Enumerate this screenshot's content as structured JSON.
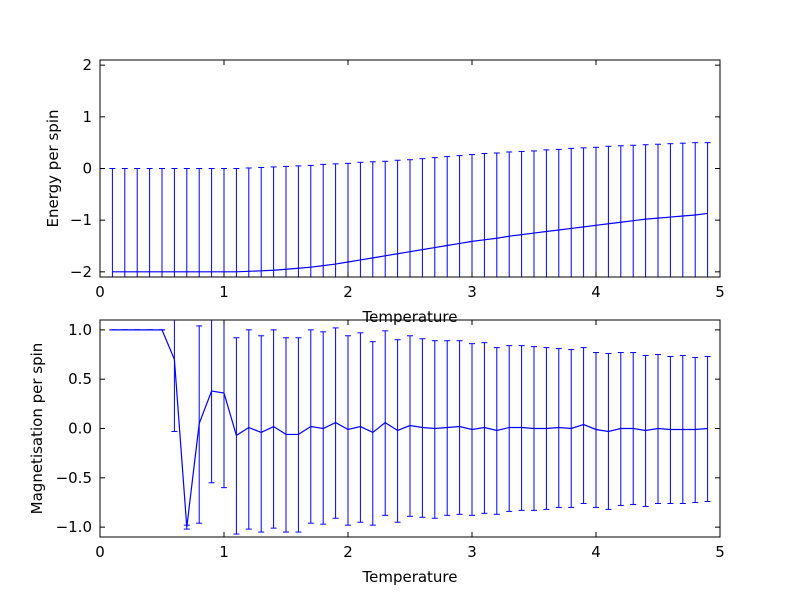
{
  "chart_data": [
    {
      "type": "line",
      "xlabel": "Temperature",
      "ylabel": "Energy per spin",
      "xlim": [
        0,
        5
      ],
      "ylim": [
        -2.1,
        2.1
      ],
      "xticks": [
        0,
        1,
        2,
        3,
        4,
        5
      ],
      "xtick_labels": [
        "0",
        "1",
        "2",
        "3",
        "4",
        "5"
      ],
      "yticks": [
        -2,
        -1,
        0,
        1,
        2
      ],
      "ytick_labels": [
        "−2",
        "−1",
        "0",
        "1",
        "2"
      ],
      "color": "#0000ff",
      "grid": false,
      "x": [
        0.1,
        0.2,
        0.3,
        0.4,
        0.5,
        0.6,
        0.7,
        0.8,
        0.9,
        1.0,
        1.1,
        1.2,
        1.3,
        1.4,
        1.5,
        1.6,
        1.7,
        1.8,
        1.9,
        2.0,
        2.1,
        2.2,
        2.3,
        2.4,
        2.5,
        2.6,
        2.7,
        2.8,
        2.9,
        3.0,
        3.1,
        3.2,
        3.3,
        3.4,
        3.5,
        3.6,
        3.7,
        3.8,
        3.9,
        4.0,
        4.1,
        4.2,
        4.3,
        4.4,
        4.5,
        4.6,
        4.7,
        4.8,
        4.9
      ],
      "y": [
        -2.0,
        -2.0,
        -2.0,
        -2.0,
        -2.0,
        -2.0,
        -2.0,
        -2.0,
        -2.0,
        -2.0,
        -2.0,
        -1.99,
        -1.98,
        -1.97,
        -1.95,
        -1.93,
        -1.91,
        -1.88,
        -1.85,
        -1.81,
        -1.77,
        -1.73,
        -1.69,
        -1.65,
        -1.61,
        -1.57,
        -1.53,
        -1.49,
        -1.45,
        -1.41,
        -1.38,
        -1.35,
        -1.31,
        -1.28,
        -1.25,
        -1.22,
        -1.19,
        -1.16,
        -1.13,
        -1.1,
        -1.07,
        -1.04,
        -1.01,
        -0.98,
        -0.96,
        -0.94,
        -0.92,
        -0.9,
        -0.87
      ],
      "err_upper": [
        0.0,
        0.0,
        0.0,
        0.0,
        0.0,
        0.0,
        0.0,
        0.0,
        0.0,
        0.0,
        0.0,
        0.01,
        0.02,
        0.03,
        0.04,
        0.05,
        0.06,
        0.08,
        0.09,
        0.1,
        0.12,
        0.13,
        0.14,
        0.16,
        0.17,
        0.19,
        0.21,
        0.23,
        0.25,
        0.27,
        0.29,
        0.3,
        0.32,
        0.33,
        0.34,
        0.36,
        0.37,
        0.39,
        0.4,
        0.41,
        0.43,
        0.44,
        0.45,
        0.46,
        0.47,
        0.48,
        0.49,
        0.5,
        0.5
      ],
      "err_lower": [
        -2.12,
        -2.12,
        -2.12,
        -2.12,
        -2.12,
        -2.12,
        -2.12,
        -2.12,
        -2.12,
        -2.12,
        -2.12,
        -2.12,
        -2.12,
        -2.12,
        -2.12,
        -2.12,
        -2.12,
        -2.12,
        -2.12,
        -2.12,
        -2.12,
        -2.12,
        -2.12,
        -2.12,
        -2.12,
        -2.12,
        -2.12,
        -2.12,
        -2.12,
        -2.12,
        -2.12,
        -2.12,
        -2.12,
        -2.12,
        -2.12,
        -2.12,
        -2.12,
        -2.12,
        -2.12,
        -2.12,
        -2.12,
        -2.12,
        -2.12,
        -2.12,
        -2.12,
        -2.12,
        -2.12,
        -2.12,
        -2.12
      ]
    },
    {
      "type": "line",
      "xlabel": "Temperature",
      "ylabel": "Magnetisation per spin",
      "xlim": [
        0,
        5
      ],
      "ylim": [
        -1.1,
        1.1
      ],
      "xticks": [
        0,
        1,
        2,
        3,
        4,
        5
      ],
      "xtick_labels": [
        "0",
        "1",
        "2",
        "3",
        "4",
        "5"
      ],
      "yticks": [
        -1.0,
        -0.5,
        0.0,
        0.5,
        1.0
      ],
      "ytick_labels": [
        "−1.0",
        "−0.5",
        "0.0",
        "0.5",
        "1.0"
      ],
      "color": "#0000ff",
      "grid": false,
      "x": [
        0.1,
        0.2,
        0.3,
        0.4,
        0.5,
        0.6,
        0.7,
        0.8,
        0.9,
        1.0,
        1.1,
        1.2,
        1.3,
        1.4,
        1.5,
        1.6,
        1.7,
        1.8,
        1.9,
        2.0,
        2.1,
        2.2,
        2.3,
        2.4,
        2.5,
        2.6,
        2.7,
        2.8,
        2.9,
        3.0,
        3.1,
        3.2,
        3.3,
        3.4,
        3.5,
        3.6,
        3.7,
        3.8,
        3.9,
        4.0,
        4.1,
        4.2,
        4.3,
        4.4,
        4.5,
        4.6,
        4.7,
        4.8,
        4.9
      ],
      "y": [
        1.0,
        1.0,
        1.0,
        1.0,
        1.0,
        0.7,
        -1.0,
        0.05,
        0.38,
        0.36,
        -0.07,
        0.01,
        -0.04,
        0.02,
        -0.06,
        -0.06,
        0.02,
        0.0,
        0.06,
        -0.01,
        0.02,
        -0.04,
        0.06,
        -0.02,
        0.03,
        0.01,
        0.0,
        0.01,
        0.02,
        -0.01,
        0.01,
        -0.02,
        0.01,
        0.01,
        0.0,
        0.0,
        0.01,
        0.0,
        0.04,
        -0.01,
        -0.03,
        0.0,
        0.0,
        -0.02,
        0.0,
        -0.01,
        -0.01,
        -0.01,
        0.0
      ],
      "err_upper": [
        1.0,
        1.0,
        1.0,
        1.0,
        1.0,
        1.2,
        -0.98,
        1.04,
        1.3,
        1.28,
        0.92,
        1.0,
        0.94,
        1.0,
        0.92,
        0.92,
        1.0,
        0.98,
        1.02,
        0.94,
        0.97,
        0.88,
        0.99,
        0.9,
        0.94,
        0.91,
        0.89,
        0.89,
        0.89,
        0.86,
        0.87,
        0.82,
        0.84,
        0.84,
        0.83,
        0.82,
        0.81,
        0.8,
        0.82,
        0.77,
        0.76,
        0.77,
        0.77,
        0.74,
        0.75,
        0.73,
        0.74,
        0.72,
        0.73
      ],
      "err_lower": [
        1.0,
        1.0,
        1.0,
        1.0,
        1.0,
        -0.03,
        -1.02,
        -0.96,
        -0.55,
        -0.6,
        -1.07,
        -1.02,
        -1.05,
        -1.01,
        -1.05,
        -1.05,
        -0.96,
        -0.97,
        -0.91,
        -0.98,
        -0.95,
        -0.98,
        -0.88,
        -0.95,
        -0.89,
        -0.9,
        -0.91,
        -0.88,
        -0.87,
        -0.88,
        -0.86,
        -0.87,
        -0.84,
        -0.83,
        -0.83,
        -0.82,
        -0.8,
        -0.8,
        -0.76,
        -0.8,
        -0.82,
        -0.78,
        -0.77,
        -0.79,
        -0.76,
        -0.76,
        -0.76,
        -0.75,
        -0.74
      ]
    }
  ]
}
